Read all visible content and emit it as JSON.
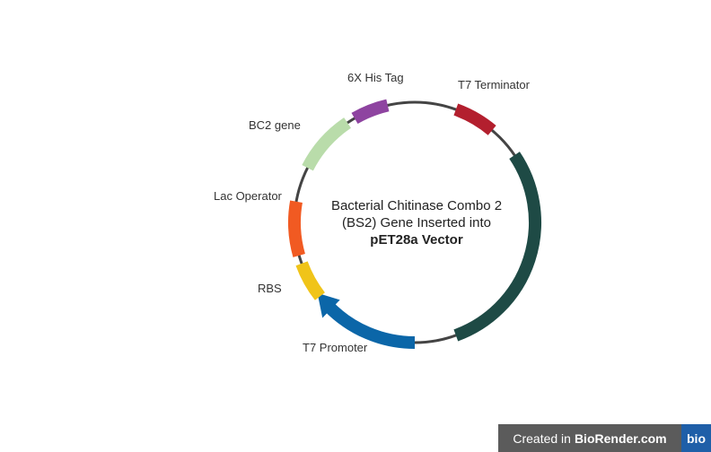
{
  "diagram": {
    "center_text": {
      "line1": "Bacterial Chitinase Combo 2",
      "line2": "(BS2) Gene Inserted into",
      "line3": "pET28a Vector"
    },
    "features": [
      {
        "id": "t7-terminator",
        "label": "T7 Terminator",
        "color": "#b31f2e"
      },
      {
        "id": "insert-gene",
        "label": "",
        "color": "#1e4a45"
      },
      {
        "id": "t7-promoter",
        "label": "T7 Promoter",
        "color": "#0b66a8"
      },
      {
        "id": "rbs",
        "label": "RBS",
        "color": "#f0c419"
      },
      {
        "id": "lac-operator",
        "label": "Lac Operator",
        "color": "#f15a22"
      },
      {
        "id": "bc2-gene",
        "label": "BC2 gene",
        "color": "#b9dcaa"
      },
      {
        "id": "his-tag",
        "label": "6X His Tag",
        "color": "#8e44a0"
      }
    ],
    "backbone_color": "#444444"
  },
  "watermark": {
    "prefix": "Created in",
    "brand": "BioRender.com",
    "logo": "bio"
  }
}
